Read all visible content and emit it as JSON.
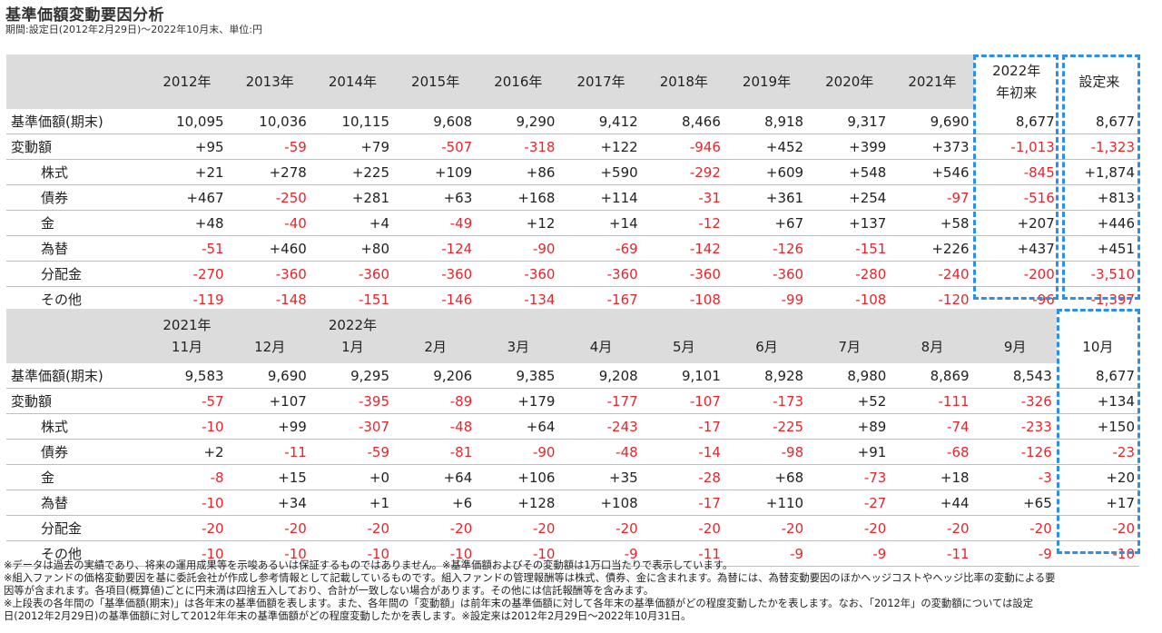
{
  "title": "基準価額変動要因分析",
  "subtitle": "期間:設定日(2012年2月29日)～2022年10月末、単位:円",
  "annual": {
    "headers": [
      "2012年",
      "2013年",
      "2014年",
      "2015年",
      "2016年",
      "2017年",
      "2018年",
      "2019年",
      "2020年",
      "2021年",
      "2022年\n年初来",
      "設定来"
    ],
    "rows": [
      {
        "label": "基準価額(期末)",
        "sub": false,
        "values": [
          "10,095",
          "10,036",
          "10,115",
          "9,608",
          "9,290",
          "9,412",
          "8,466",
          "8,918",
          "9,317",
          "9,690",
          "8,677",
          "8,677"
        ]
      },
      {
        "label": "変動額",
        "sub": false,
        "values": [
          "+95",
          "-59",
          "+79",
          "-507",
          "-318",
          "+122",
          "-946",
          "+452",
          "+399",
          "+373",
          "-1,013",
          "-1,323"
        ]
      },
      {
        "label": "株式",
        "sub": true,
        "values": [
          "+21",
          "+278",
          "+225",
          "+109",
          "+86",
          "+590",
          "-292",
          "+609",
          "+548",
          "+546",
          "-845",
          "+1,874"
        ]
      },
      {
        "label": "債券",
        "sub": true,
        "values": [
          "+467",
          "-250",
          "+281",
          "+63",
          "+168",
          "+114",
          "-31",
          "+361",
          "+254",
          "-97",
          "-516",
          "+813"
        ]
      },
      {
        "label": "金",
        "sub": true,
        "values": [
          "+48",
          "-40",
          "+4",
          "-49",
          "+12",
          "+14",
          "-12",
          "+67",
          "+137",
          "+58",
          "+207",
          "+446"
        ]
      },
      {
        "label": "為替",
        "sub": true,
        "values": [
          "-51",
          "+460",
          "+80",
          "-124",
          "-90",
          "-69",
          "-142",
          "-126",
          "-151",
          "+226",
          "+437",
          "+451"
        ]
      },
      {
        "label": "分配金",
        "sub": true,
        "values": [
          "-270",
          "-360",
          "-360",
          "-360",
          "-360",
          "-360",
          "-360",
          "-360",
          "-280",
          "-240",
          "-200",
          "-3,510"
        ]
      },
      {
        "label": "その他",
        "sub": true,
        "values": [
          "-119",
          "-148",
          "-151",
          "-146",
          "-134",
          "-167",
          "-108",
          "-99",
          "-108",
          "-120",
          "-96",
          "-1,397"
        ]
      }
    ]
  },
  "monthly": {
    "headers": [
      [
        "2021年",
        "11月"
      ],
      [
        "",
        "12月"
      ],
      [
        "2022年",
        "1月"
      ],
      [
        "",
        "2月"
      ],
      [
        "",
        "3月"
      ],
      [
        "",
        "4月"
      ],
      [
        "",
        "5月"
      ],
      [
        "",
        "6月"
      ],
      [
        "",
        "7月"
      ],
      [
        "",
        "8月"
      ],
      [
        "",
        "9月"
      ],
      [
        "",
        "10月"
      ]
    ],
    "rows": [
      {
        "label": "基準価額(期末)",
        "sub": false,
        "values": [
          "9,583",
          "9,690",
          "9,295",
          "9,206",
          "9,385",
          "9,208",
          "9,101",
          "8,928",
          "8,980",
          "8,869",
          "8,543",
          "8,677"
        ]
      },
      {
        "label": "変動額",
        "sub": false,
        "values": [
          "-57",
          "+107",
          "-395",
          "-89",
          "+179",
          "-177",
          "-107",
          "-173",
          "+52",
          "-111",
          "-326",
          "+134"
        ]
      },
      {
        "label": "株式",
        "sub": true,
        "values": [
          "-10",
          "+99",
          "-307",
          "-48",
          "+64",
          "-243",
          "-17",
          "-225",
          "+89",
          "-74",
          "-233",
          "+150"
        ]
      },
      {
        "label": "債券",
        "sub": true,
        "values": [
          "+2",
          "-11",
          "-59",
          "-81",
          "-90",
          "-48",
          "-14",
          "-98",
          "+91",
          "-68",
          "-126",
          "-23"
        ]
      },
      {
        "label": "金",
        "sub": true,
        "values": [
          "-8",
          "+15",
          "+0",
          "+64",
          "+106",
          "+35",
          "-28",
          "+68",
          "-73",
          "+18",
          "-3",
          "+20"
        ]
      },
      {
        "label": "為替",
        "sub": true,
        "values": [
          "-10",
          "+34",
          "+1",
          "+6",
          "+128",
          "+108",
          "-17",
          "+110",
          "-27",
          "+44",
          "+65",
          "+17"
        ]
      },
      {
        "label": "分配金",
        "sub": true,
        "values": [
          "-20",
          "-20",
          "-20",
          "-20",
          "-20",
          "-20",
          "-20",
          "-20",
          "-20",
          "-20",
          "-20",
          "-20"
        ]
      },
      {
        "label": "その他",
        "sub": true,
        "values": [
          "-10",
          "-10",
          "-10",
          "-10",
          "-10",
          "-9",
          "-11",
          "-9",
          "-9",
          "-11",
          "-9",
          "-10"
        ]
      }
    ]
  },
  "notes": [
    "※データは過去の実績であり、将来の運用成果等を示唆あるいは保証するものではありません。※基準価額およびその変動額は1万口当たりで表示しています。",
    "※組入ファンドの価格変動要因を基に委託会社が作成し参考情報として記載しているものです。組入ファンドの管理報酬等は株式、債券、金に含まれます。為替には、為替変動要因のほかヘッジコストやヘッジ比率の変動による要",
    "因等が含まれます。各項目(概算値)ごとに円未満は四捨五入しており、合計が一致しない場合があります。その他には信託報酬等を含みます。",
    "※上段表の各年間の「基準価額(期末)」は各年末の基準価額を表します。また、各年間の「変動額」は前年末の基準価額に対して各年末の基準価額がどの程度変動したかを表します。なお、「2012年」の変動額については設定",
    "日(2012年2月29日)の基準価額に対して2012年年末の基準価額がどの程度変動したかを表します。※設定来は2012年2月29日～2022年10月31日。"
  ],
  "colors": {
    "negative": "#e8242b",
    "header_bg": "#dcdcdc",
    "highlight_border": "#2d8fe5"
  }
}
